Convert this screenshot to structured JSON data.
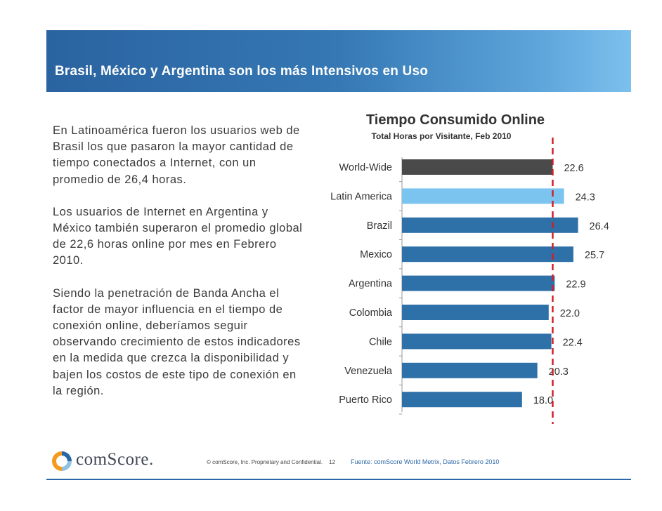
{
  "header": {
    "title": "Brasil, México y Argentina son los más Intensivos en Uso"
  },
  "body": {
    "paragraphs": [
      "En Latinoamérica fueron los usuarios web de Brasil los que pasaron la mayor cantidad de tiempo conectados a Internet, con un promedio de 26,4 horas.",
      "Los usuarios de Internet en Argentina y México también superaron el promedio global de 22,6 horas online por mes en Febrero 2010.",
      "Siendo la penetración de Banda Ancha el factor de mayor influencia en el tiempo de conexión online, deberíamos seguir observando crecimiento de estos indicadores  en la medida que crezca la disponibilidad  y bajen los costos de este tipo de conexión en la región."
    ]
  },
  "chart_data": {
    "type": "bar",
    "orientation": "horizontal",
    "title": "Tiempo Consumido Online",
    "subtitle": "Total Horas por Visitante, Feb 2010",
    "categories": [
      "World-Wide",
      "Latin America",
      "Brazil",
      "Mexico",
      "Argentina",
      "Colombia",
      "Chile",
      "Venezuela",
      "Puerto Rico"
    ],
    "values": [
      22.6,
      24.3,
      26.4,
      25.7,
      22.9,
      22.0,
      22.4,
      20.3,
      18.0
    ],
    "value_labels": [
      "22.6",
      "24.3",
      "26.4",
      "25.7",
      "22.9",
      "22.0",
      "22.4",
      "20.3",
      "18.0"
    ],
    "bar_colors": [
      "#4a4a4a",
      "#7cc4f0",
      "#2e70a8",
      "#2e70a8",
      "#2e70a8",
      "#2e70a8",
      "#2e70a8",
      "#2e70a8",
      "#2e70a8"
    ],
    "reference_value": 22.6,
    "reference_color": "#d0202a",
    "xlim": [
      0,
      27
    ]
  },
  "footer": {
    "logo_text": "comScore.",
    "copyright": "© comScore, Inc.  Proprietary and Confidential.",
    "page_number": "12",
    "source": "Fuente:  comScore World Metrix, Datos Febrero 2010"
  }
}
